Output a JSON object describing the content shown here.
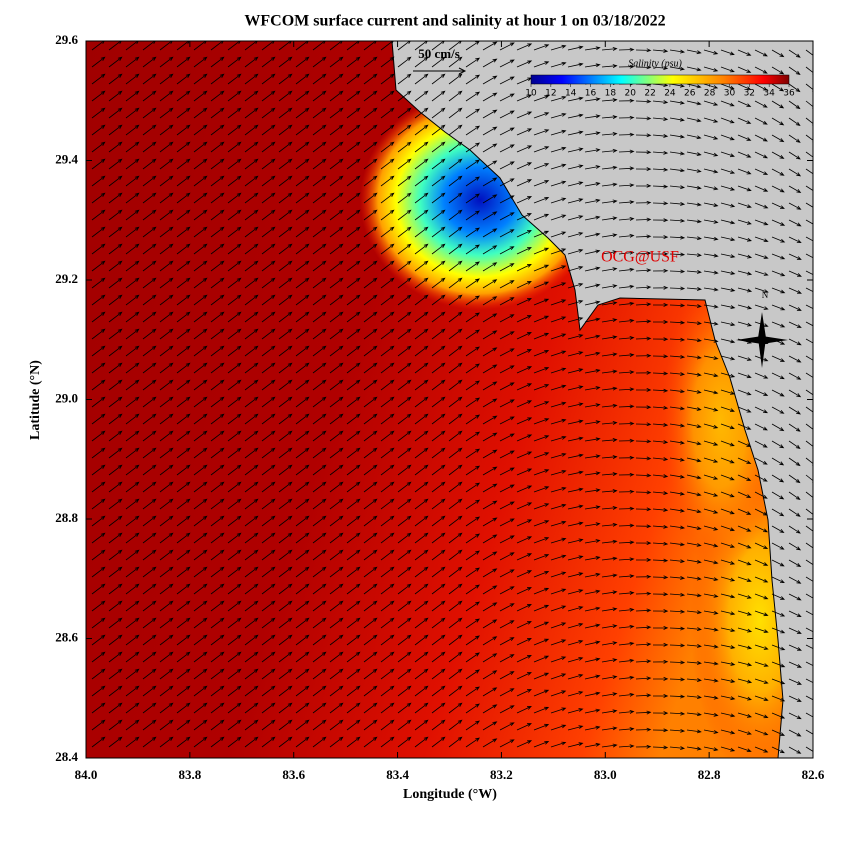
{
  "chart_data": {
    "type": "map",
    "title": "WFCOM surface current and salinity at hour 1 on 03/18/2022",
    "x_label": "Longitude (°W)",
    "y_label": "Latitude (°N)",
    "xlim": [
      84,
      82.6
    ],
    "xticks": [
      {
        "value": 84,
        "label": "84.0"
      },
      83.8,
      83.6,
      83.4,
      83.2,
      {
        "value": 83,
        "label": "83.0"
      },
      82.8,
      82.6
    ],
    "ylim": [
      28.4,
      29.6
    ],
    "yticks": [
      28.4,
      28.6,
      28.8,
      {
        "value": 29,
        "label": "29.0"
      },
      29.2,
      29.4,
      29.6
    ],
    "scale_label": "50 cm/s",
    "colorbar": {
      "title": "Salinity (psu)",
      "lim": [
        10,
        36
      ],
      "ticks": [
        10,
        12,
        14,
        16,
        18,
        20,
        22,
        24,
        26,
        28,
        30,
        32,
        34,
        36
      ]
    },
    "credit": "OCG@USF",
    "north_label": "N"
  }
}
